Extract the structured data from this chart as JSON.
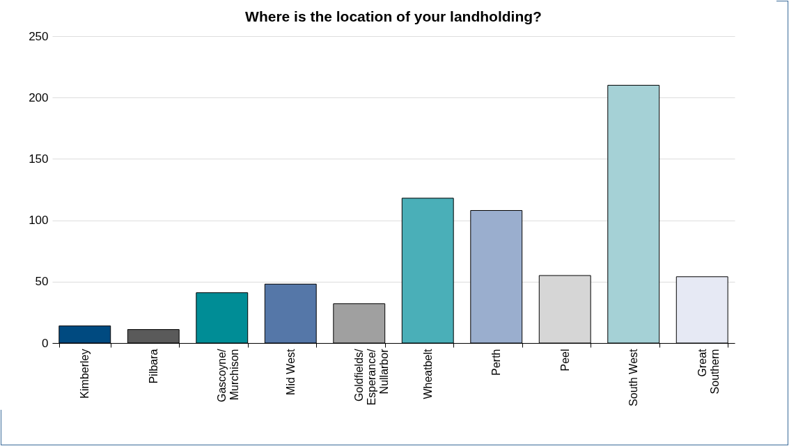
{
  "chart_data": {
    "type": "bar",
    "title": "Where is the location of your landholding?",
    "categories": [
      "Kimberley",
      "Pilbara",
      "Gascoyne/\nMurchison",
      "Mid West",
      "Goldfields/\nEsperance/\nNullarbor",
      "Wheatbelt",
      "Perth",
      "Peel",
      "South West",
      "Great\nSouthern"
    ],
    "values": [
      14,
      11,
      41,
      48,
      32,
      118,
      108,
      55,
      210,
      54
    ],
    "colors": [
      "#004a80",
      "#5a5a5a",
      "#008d96",
      "#5577a8",
      "#a0a0a0",
      "#4aafb8",
      "#9aaece",
      "#d6d6d6",
      "#a5d1d6",
      "#e6e9f4"
    ],
    "ylim": [
      0,
      250
    ],
    "yticks": [
      0,
      50,
      100,
      150,
      200,
      250
    ],
    "grid": "y"
  }
}
